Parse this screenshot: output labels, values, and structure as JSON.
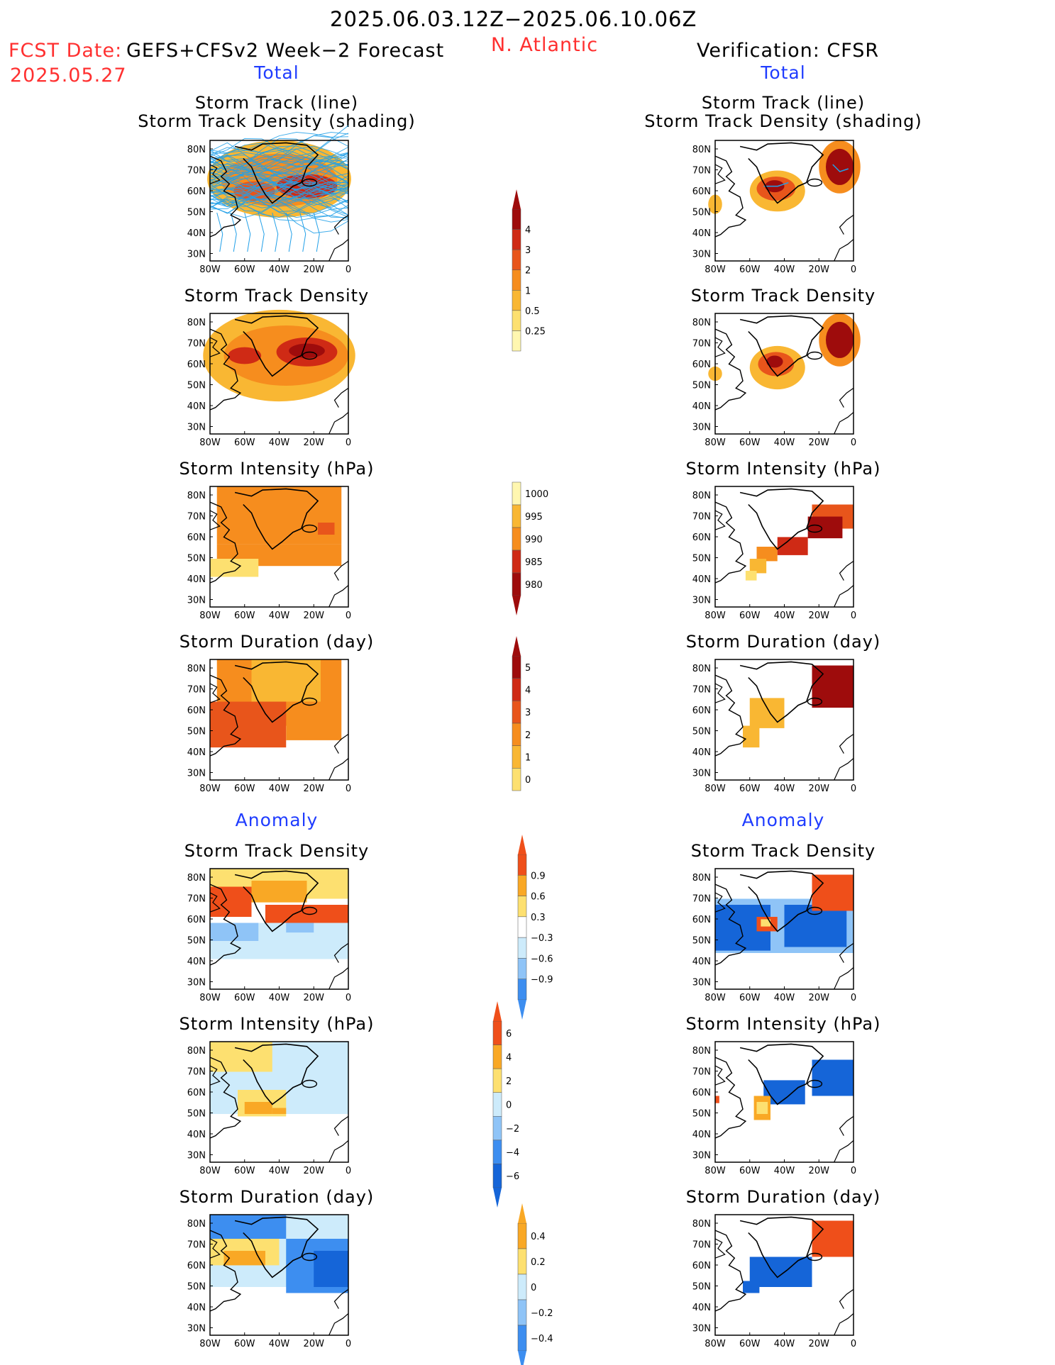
{
  "header": {
    "period": "2025.06.03.12Z−2025.06.10.06Z",
    "fcst_label": "FCST Date:",
    "fcst_product": "GEFS+CFSv2 Week−2 Forecast",
    "fcst_date": "2025.05.27",
    "region": "N. Atlantic",
    "verification": "Verification: CFSR"
  },
  "sections": {
    "total": "Total",
    "anomaly": "Anomaly"
  },
  "panel_titles": {
    "track_line": "Storm Track (line)",
    "track_shading": "Storm Track Density (shading)",
    "density": "Storm Track Density",
    "intensity": "Storm Intensity (hPa)",
    "duration": "Storm Duration (day)"
  },
  "axes": {
    "lat_ticks": [
      "80N",
      "70N",
      "60N",
      "50N",
      "40N",
      "30N"
    ],
    "lon_ticks": [
      "80W",
      "60W",
      "40W",
      "20W",
      "0"
    ]
  },
  "colorbars": {
    "density": [
      "4",
      "3",
      "2",
      "1",
      "0.5",
      "0.25"
    ],
    "intensity": [
      "1000",
      "995",
      "990",
      "985",
      "980"
    ],
    "duration": [
      "5",
      "4",
      "3",
      "2",
      "1",
      "0"
    ],
    "density_anom": [
      "0.9",
      "0.6",
      "0.3",
      "−0.3",
      "−0.6",
      "−0.9"
    ],
    "intensity_anom": [
      "6",
      "4",
      "2",
      "0",
      "−2",
      "−4",
      "−6"
    ],
    "duration_anom": [
      "0.4",
      "0.2",
      "0",
      "−0.2",
      "−0.4"
    ]
  },
  "colors": {
    "title_red": "#ff3030",
    "title_blue": "#1f3cff",
    "scale_warm": [
      "#fff7b0",
      "#fde070",
      "#f9b733",
      "#f68d1e",
      "#e8551b",
      "#cf2a15",
      "#9e0c0c"
    ],
    "scale_anom": [
      "#1565d8",
      "#3d8ef0",
      "#8fc4f7",
      "#cdebfb",
      "#ffffff",
      "#fde070",
      "#f9a825",
      "#ef4f1a"
    ]
  }
}
